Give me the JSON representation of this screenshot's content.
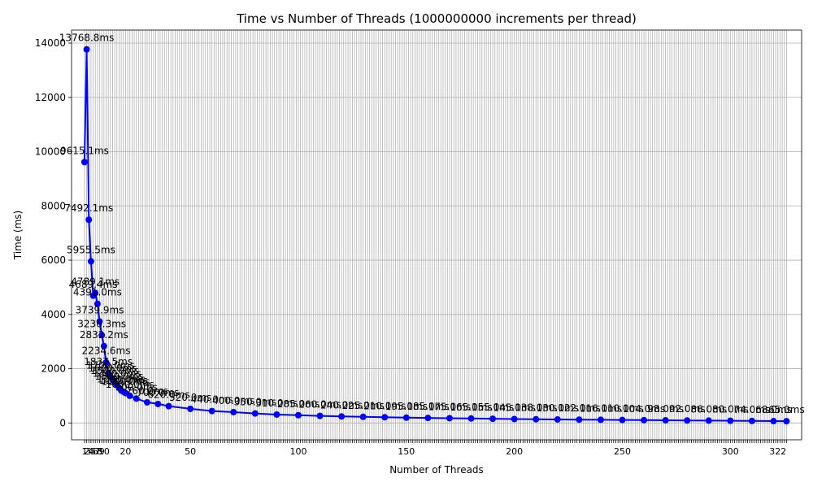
{
  "chart_data": {
    "type": "line",
    "title": "Time vs Number of Threads (1000000000 increments per thread)",
    "xlabel": "Number of Threads",
    "ylabel": "Time (ms)",
    "xlim": [
      -5,
      333
    ],
    "ylim": [
      -620,
      14480
    ],
    "yticks": [
      0,
      2000,
      4000,
      6000,
      8000,
      10000,
      12000,
      14000
    ],
    "grid": true,
    "series_color": "#0000ff",
    "label_color": "#000000",
    "x": [
      1,
      2,
      3,
      4,
      5,
      6,
      7,
      8,
      9,
      10,
      11,
      12,
      13,
      14,
      15,
      16,
      17,
      18,
      19,
      20,
      22,
      25,
      30,
      35,
      40,
      50,
      60,
      70,
      80,
      90,
      100,
      110,
      120,
      130,
      140,
      150,
      160,
      170,
      180,
      190,
      200,
      210,
      220,
      230,
      240,
      250,
      260,
      270,
      280,
      290,
      300,
      310,
      320,
      326
    ],
    "y": [
      9615.1,
      13768.8,
      7492.1,
      5955.5,
      4689.4,
      4789.1,
      4391.0,
      3739.9,
      3236.3,
      2832.2,
      2234.6,
      1837.5,
      1700,
      1600,
      1500,
      1400,
      1300,
      1200,
      1150,
      1100,
      1000,
      900,
      760,
      700,
      620,
      520,
      440,
      400,
      350,
      310,
      285,
      260,
      240,
      225,
      210,
      195,
      185,
      175,
      165,
      155,
      145,
      138,
      130,
      122,
      116,
      110,
      104,
      98,
      92,
      86,
      80,
      74,
      68,
      65
    ],
    "data_labels": [
      "9615.1ms",
      "13768.8ms",
      "7492.1ms",
      "5955.5ms",
      "4689.4ms",
      "4789.1ms",
      "4391.0ms",
      "3739.9ms",
      "3236.3ms",
      "2832.2ms",
      "2234.6ms",
      "1837.5ms",
      "1700.0ms",
      "1600.0ms",
      "1500.0ms",
      "1400.0ms",
      "1300.0ms",
      "1200.0ms",
      "1150.0ms",
      "1100.0ms",
      "1000.0ms",
      "900.0ms",
      "760.0ms",
      "700.0ms",
      "620.0ms",
      "520.0ms",
      "440.0ms",
      "400.0ms",
      "350.0ms",
      "310.0ms",
      "285.0ms",
      "260.0ms",
      "240.0ms",
      "225.0ms",
      "210.0ms",
      "195.0ms",
      "185.0ms",
      "175.0ms",
      "165.0ms",
      "155.0ms",
      "145.0ms",
      "138.0ms",
      "130.0ms",
      "122.0ms",
      "116.0ms",
      "110.0ms",
      "104.0ms",
      "98.0ms",
      "92.0ms",
      "86.0ms",
      "80.0ms",
      "74.0ms",
      "68.0ms",
      "65.0ms"
    ],
    "xticks_shown": [
      "1",
      "2",
      "3",
      "4",
      "5",
      "6",
      "7",
      "8",
      "9",
      "10",
      "20",
      "50",
      "100",
      "150",
      "200",
      "250",
      "300",
      "322"
    ],
    "xticks_positions": [
      1,
      2,
      3,
      4,
      5,
      6,
      7,
      8,
      9,
      10,
      20,
      50,
      100,
      150,
      200,
      250,
      300,
      322
    ]
  }
}
